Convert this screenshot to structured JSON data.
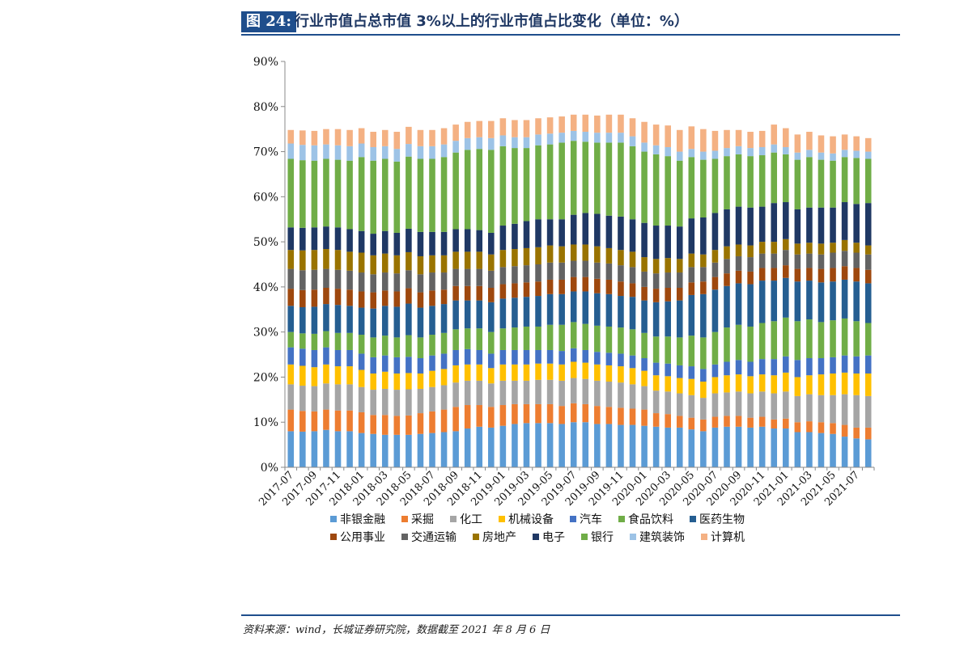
{
  "header": {
    "badge": "图 24:",
    "title": "行业市值占总市值 3%以上的行业市值占比变化（单位：%）"
  },
  "source": "资料来源：wind，长城证券研究院，数据截至 2021 年 8 月 6 日",
  "chart_data": {
    "type": "bar",
    "stacked": true,
    "ylim": [
      0,
      90
    ],
    "yticks": [
      "0%",
      "10%",
      "20%",
      "30%",
      "40%",
      "50%",
      "60%",
      "70%",
      "80%",
      "90%"
    ],
    "grid": false,
    "legend_position": "bottom",
    "categories": [
      "2017-07",
      "2017-08",
      "2017-09",
      "2017-10",
      "2017-11",
      "2017-12",
      "2018-01",
      "2018-02",
      "2018-03",
      "2018-04",
      "2018-05",
      "2018-06",
      "2018-07",
      "2018-08",
      "2018-09",
      "2018-10",
      "2018-11",
      "2018-12",
      "2019-01",
      "2019-02",
      "2019-03",
      "2019-04",
      "2019-05",
      "2019-06",
      "2019-07",
      "2019-08",
      "2019-09",
      "2019-10",
      "2019-11",
      "2019-12",
      "2020-01",
      "2020-02",
      "2020-03",
      "2020-04",
      "2020-05",
      "2020-06",
      "2020-07",
      "2020-08",
      "2020-09",
      "2020-10",
      "2020-11",
      "2020-12",
      "2021-01",
      "2021-02",
      "2021-03",
      "2021-04",
      "2021-05",
      "2021-06",
      "2021-07",
      "2021-08"
    ],
    "xtick_labels": [
      "2017-07",
      "2017-09",
      "2017-11",
      "2018-01",
      "2018-03",
      "2018-05",
      "2018-07",
      "2018-09",
      "2018-11",
      "2019-01",
      "2019-03",
      "2019-05",
      "2019-07",
      "2019-09",
      "2019-11",
      "2020-01",
      "2020-03",
      "2020-05",
      "2020-07",
      "2020-09",
      "2020-11",
      "2021-01",
      "2021-03",
      "2021-05",
      "2021-07"
    ],
    "series": [
      {
        "name": "非银金融",
        "color": "#5b9bd5",
        "values": [
          8.0,
          7.9,
          8.0,
          8.3,
          8.0,
          8.0,
          7.6,
          7.4,
          7.2,
          7.2,
          7.2,
          7.4,
          7.6,
          7.8,
          8.0,
          8.6,
          9.0,
          8.8,
          9.2,
          9.6,
          9.8,
          9.8,
          9.8,
          9.6,
          10.0,
          10.0,
          9.6,
          9.6,
          9.4,
          9.4,
          9.2,
          9.0,
          8.8,
          8.8,
          8.4,
          8.0,
          8.8,
          9.0,
          9.0,
          8.8,
          9.0,
          8.6,
          8.6,
          7.8,
          7.8,
          7.6,
          7.4,
          6.8,
          6.4,
          6.2
        ]
      },
      {
        "name": "采掘",
        "color": "#ed7d31",
        "values": [
          4.8,
          4.6,
          4.4,
          4.5,
          4.6,
          4.6,
          4.6,
          4.2,
          4.4,
          4.2,
          4.3,
          4.6,
          4.8,
          5.0,
          5.4,
          5.2,
          4.8,
          4.6,
          4.6,
          4.4,
          4.2,
          4.2,
          4.2,
          4.0,
          4.2,
          4.0,
          4.0,
          3.8,
          3.8,
          3.6,
          3.6,
          3.0,
          3.0,
          2.6,
          2.6,
          2.6,
          2.4,
          2.4,
          2.4,
          2.2,
          2.2,
          2.0,
          2.2,
          2.2,
          2.4,
          2.4,
          2.4,
          2.6,
          2.4,
          2.6
        ]
      },
      {
        "name": "化工",
        "color": "#a5a5a5",
        "values": [
          5.6,
          5.6,
          5.6,
          5.8,
          5.8,
          5.8,
          5.6,
          5.6,
          5.8,
          5.8,
          5.8,
          5.4,
          5.4,
          5.4,
          5.4,
          5.4,
          5.4,
          5.2,
          5.4,
          5.2,
          5.2,
          5.4,
          5.4,
          5.6,
          5.6,
          5.6,
          5.6,
          5.6,
          5.6,
          5.4,
          5.2,
          5.0,
          5.0,
          5.0,
          5.0,
          4.8,
          5.2,
          5.2,
          5.4,
          5.4,
          5.6,
          5.8,
          6.0,
          5.8,
          6.0,
          6.0,
          6.2,
          6.8,
          7.2,
          7.0
        ]
      },
      {
        "name": "机械设备",
        "color": "#ffc000",
        "values": [
          4.4,
          4.4,
          4.2,
          4.2,
          4.0,
          4.0,
          3.8,
          3.6,
          3.8,
          3.6,
          3.6,
          3.4,
          3.6,
          3.6,
          3.8,
          3.6,
          3.6,
          3.4,
          3.6,
          3.6,
          3.6,
          3.6,
          3.6,
          3.6,
          3.6,
          3.6,
          3.6,
          3.6,
          3.6,
          3.6,
          3.4,
          3.4,
          3.4,
          3.4,
          3.6,
          3.6,
          3.6,
          3.8,
          3.8,
          3.8,
          3.8,
          4.0,
          4.2,
          4.2,
          4.2,
          4.6,
          4.8,
          4.8,
          4.8,
          5.0
        ]
      },
      {
        "name": "汽车",
        "color": "#4472c4",
        "values": [
          3.8,
          3.8,
          3.8,
          3.8,
          3.6,
          3.6,
          3.6,
          3.6,
          3.6,
          3.6,
          3.6,
          3.4,
          3.4,
          3.4,
          3.4,
          3.4,
          3.2,
          3.2,
          3.2,
          3.2,
          3.2,
          3.0,
          3.0,
          3.0,
          3.0,
          2.8,
          2.8,
          2.8,
          2.8,
          2.8,
          2.8,
          2.8,
          2.8,
          2.8,
          2.8,
          2.8,
          2.8,
          3.0,
          3.2,
          3.2,
          3.4,
          3.6,
          3.6,
          3.8,
          3.8,
          3.6,
          3.6,
          3.8,
          3.8,
          4.0
        ]
      },
      {
        "name": "食品饮料",
        "color": "#70ad47",
        "values": [
          3.4,
          3.4,
          3.6,
          3.6,
          3.8,
          3.8,
          4.2,
          4.4,
          4.4,
          4.4,
          4.8,
          4.6,
          4.6,
          4.6,
          4.6,
          4.6,
          4.8,
          4.8,
          4.8,
          5.0,
          5.2,
          5.2,
          5.6,
          5.8,
          5.8,
          5.8,
          5.8,
          5.8,
          5.8,
          5.8,
          5.6,
          5.8,
          6.0,
          6.2,
          6.8,
          7.0,
          7.2,
          7.6,
          7.8,
          7.8,
          8.0,
          8.4,
          8.6,
          8.6,
          8.6,
          8.0,
          8.2,
          8.2,
          7.8,
          7.2
        ]
      },
      {
        "name": "医药生物",
        "color": "#255e91",
        "values": [
          5.8,
          5.8,
          6.0,
          6.0,
          6.2,
          6.0,
          6.0,
          6.4,
          6.6,
          6.8,
          7.0,
          6.6,
          6.4,
          6.4,
          6.4,
          6.2,
          6.2,
          6.6,
          6.6,
          6.6,
          6.6,
          6.8,
          6.8,
          6.8,
          6.8,
          7.2,
          7.2,
          7.2,
          7.0,
          7.2,
          7.2,
          7.6,
          7.8,
          8.2,
          9.0,
          9.6,
          9.4,
          9.2,
          9.2,
          9.4,
          9.4,
          9.0,
          8.8,
          8.8,
          8.6,
          8.8,
          8.6,
          8.6,
          8.8,
          8.8
        ]
      },
      {
        "name": "公用事业",
        "color": "#9e480e",
        "values": [
          3.8,
          3.8,
          3.8,
          3.6,
          3.6,
          3.6,
          3.6,
          3.6,
          3.4,
          3.4,
          3.4,
          3.4,
          3.4,
          3.2,
          3.2,
          3.2,
          3.2,
          3.2,
          3.2,
          3.2,
          3.2,
          3.2,
          3.2,
          3.2,
          3.2,
          3.2,
          3.2,
          3.2,
          3.2,
          3.0,
          3.0,
          3.0,
          3.0,
          2.8,
          2.8,
          2.8,
          2.8,
          2.8,
          2.8,
          2.8,
          2.8,
          2.8,
          2.8,
          2.8,
          2.8,
          3.0,
          3.0,
          3.0,
          3.0,
          3.0
        ]
      },
      {
        "name": "交通运输",
        "color": "#636363",
        "values": [
          4.4,
          4.4,
          4.4,
          4.2,
          4.2,
          4.2,
          4.2,
          4.0,
          4.0,
          4.0,
          4.0,
          4.0,
          4.0,
          3.8,
          3.8,
          3.8,
          3.8,
          3.8,
          3.8,
          3.8,
          3.8,
          3.8,
          3.8,
          3.8,
          3.6,
          3.6,
          3.6,
          3.6,
          3.6,
          3.6,
          3.4,
          3.4,
          3.4,
          3.4,
          3.4,
          3.2,
          3.2,
          3.2,
          3.2,
          3.2,
          3.2,
          3.2,
          3.4,
          3.2,
          3.2,
          3.2,
          3.4,
          3.4,
          3.4,
          3.4
        ]
      },
      {
        "name": "房地产",
        "color": "#997300",
        "values": [
          4.2,
          4.4,
          4.4,
          4.4,
          4.4,
          4.2,
          4.4,
          4.2,
          4.2,
          4.0,
          4.0,
          4.0,
          3.8,
          3.8,
          3.8,
          3.8,
          3.8,
          3.6,
          3.8,
          3.8,
          3.8,
          3.8,
          3.8,
          3.6,
          3.6,
          3.6,
          3.6,
          3.4,
          3.4,
          3.4,
          3.2,
          3.2,
          3.2,
          3.0,
          3.0,
          2.8,
          2.8,
          2.8,
          2.6,
          2.6,
          2.6,
          2.6,
          2.4,
          2.4,
          2.4,
          2.4,
          2.2,
          2.4,
          2.2,
          2.0
        ]
      },
      {
        "name": "电子",
        "color": "#1f3864",
        "values": [
          5.0,
          5.0,
          5.0,
          5.0,
          5.0,
          5.0,
          4.8,
          4.8,
          5.0,
          5.0,
          5.2,
          5.4,
          5.2,
          5.2,
          5.0,
          5.0,
          4.8,
          4.8,
          5.4,
          5.6,
          6.0,
          6.2,
          5.8,
          6.0,
          6.6,
          7.0,
          7.2,
          7.2,
          7.4,
          7.2,
          7.6,
          7.4,
          7.2,
          7.2,
          7.8,
          8.2,
          8.2,
          8.2,
          8.4,
          8.4,
          7.8,
          8.6,
          8.2,
          7.6,
          7.8,
          8.0,
          7.8,
          8.4,
          8.6,
          9.4
        ]
      },
      {
        "name": "银行",
        "color": "#70ad47",
        "values": [
          15.2,
          15.0,
          14.8,
          15.0,
          15.0,
          15.2,
          16.4,
          16.2,
          16.0,
          15.8,
          16.0,
          16.2,
          16.2,
          16.6,
          17.0,
          17.6,
          18.0,
          18.4,
          17.6,
          16.8,
          16.2,
          16.4,
          16.6,
          17.0,
          16.4,
          15.8,
          15.8,
          16.2,
          16.4,
          16.2,
          15.8,
          15.8,
          15.4,
          14.6,
          13.6,
          12.8,
          12.0,
          11.8,
          11.6,
          11.4,
          11.4,
          11.2,
          10.6,
          11.0,
          11.2,
          10.6,
          10.4,
          10.0,
          10.2,
          9.8
        ]
      },
      {
        "name": "建筑装饰",
        "color": "#9dc3e6",
        "values": [
          3.4,
          3.4,
          3.4,
          3.2,
          3.2,
          3.2,
          3.0,
          3.0,
          2.8,
          2.8,
          2.8,
          2.8,
          2.8,
          2.8,
          2.6,
          2.6,
          2.6,
          2.6,
          2.4,
          2.4,
          2.4,
          2.4,
          2.4,
          2.2,
          2.2,
          2.2,
          2.2,
          2.2,
          2.2,
          2.2,
          2.0,
          2.0,
          2.0,
          2.0,
          1.8,
          1.8,
          1.8,
          1.8,
          1.8,
          1.8,
          1.8,
          1.8,
          1.6,
          1.6,
          1.6,
          1.6,
          1.6,
          1.6,
          1.6,
          1.6
        ]
      },
      {
        "name": "计算机",
        "color": "#f4b183",
        "values": [
          3.0,
          3.2,
          3.2,
          3.4,
          3.6,
          3.6,
          3.4,
          3.4,
          3.6,
          3.8,
          3.8,
          3.6,
          3.6,
          3.6,
          3.6,
          3.6,
          3.6,
          3.8,
          3.8,
          3.8,
          3.8,
          3.6,
          3.6,
          3.6,
          3.6,
          3.8,
          3.8,
          4.0,
          4.0,
          4.0,
          4.6,
          4.6,
          4.8,
          4.8,
          5.0,
          5.0,
          4.4,
          4.0,
          3.6,
          3.6,
          3.6,
          4.4,
          4.2,
          4.0,
          4.0,
          3.8,
          3.8,
          3.4,
          3.2,
          3.0
        ]
      }
    ]
  }
}
